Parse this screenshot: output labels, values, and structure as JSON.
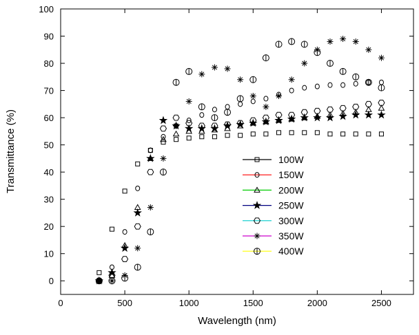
{
  "chart_data": {
    "type": "scatter",
    "x_label": "Wavelength (nm)",
    "y_label": "Transmittance (%)",
    "x": [
      300,
      400,
      500,
      600,
      700,
      800,
      900,
      1000,
      1100,
      1200,
      1300,
      1400,
      1500,
      1600,
      1700,
      1800,
      1900,
      2000,
      2100,
      2200,
      2300,
      2400,
      2500
    ],
    "xlim": [
      0,
      2750
    ],
    "xticks": [
      0,
      500,
      1000,
      1500,
      2000,
      2500
    ],
    "ylim": [
      -5,
      100
    ],
    "yticks": [
      0,
      10,
      20,
      30,
      40,
      50,
      60,
      70,
      80,
      90,
      100
    ],
    "legend_position": "center-right",
    "marker_color": "#000000",
    "series": [
      {
        "name": "100W",
        "color": "#000000",
        "marker": "square",
        "values": [
          3,
          19,
          33,
          43,
          48,
          51,
          52,
          52.5,
          53,
          53,
          53.5,
          53.5,
          54,
          54,
          54.5,
          54.5,
          54.5,
          54.5,
          54,
          54,
          54,
          54,
          54
        ]
      },
      {
        "name": "150W",
        "color": "#ff0000",
        "marker": "circle",
        "values": [
          0,
          5,
          18,
          34,
          48,
          53,
          57,
          59,
          61,
          63,
          64,
          65,
          66,
          67,
          68.5,
          70,
          71,
          71.5,
          72,
          72,
          72.5,
          73,
          73
        ]
      },
      {
        "name": "200W",
        "color": "#00cc00",
        "marker": "triangle",
        "values": [
          0,
          2,
          13,
          27,
          45,
          52,
          54,
          55,
          55,
          55.5,
          56,
          57,
          58,
          58.5,
          59,
          59.5,
          60,
          60.5,
          61,
          61.5,
          62,
          63,
          63.5
        ]
      },
      {
        "name": "250W",
        "color": "#000080",
        "marker": "star",
        "values": [
          0,
          3,
          12,
          25,
          45,
          59,
          57,
          56,
          56,
          56,
          57,
          57.5,
          58,
          58.5,
          59,
          59.5,
          60,
          60,
          60,
          60.5,
          61,
          61,
          61
        ]
      },
      {
        "name": "300W",
        "color": "#00cccc",
        "marker": "hexagon",
        "values": [
          0,
          2,
          8,
          20,
          40,
          56,
          60,
          58,
          57,
          57,
          57.5,
          58,
          59,
          60,
          61,
          61,
          62,
          62.5,
          63,
          63.5,
          64,
          65,
          65.5
        ]
      },
      {
        "name": "350W",
        "color": "#cc00cc",
        "marker": "asterisk",
        "values": [
          0,
          0,
          2,
          12,
          27,
          45,
          57,
          66,
          76,
          78.5,
          78,
          74,
          68,
          64,
          68,
          74,
          80,
          85,
          88,
          89,
          88,
          85,
          82
        ]
      },
      {
        "name": "400W",
        "color": "#ffff00",
        "marker": "circle-bar",
        "values": [
          0,
          0,
          1,
          5,
          18,
          40,
          73,
          77,
          64,
          60,
          62,
          67,
          74,
          82,
          87,
          88,
          87,
          84,
          80,
          77,
          75,
          73,
          71
        ]
      }
    ]
  }
}
